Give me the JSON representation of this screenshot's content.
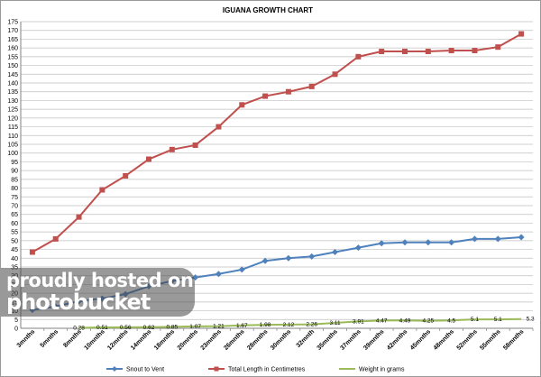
{
  "chart_data": {
    "type": "line",
    "title": "IGUANA  GROWTH  CHART",
    "categories": [
      "3mnths",
      "5mnths",
      "8mnths",
      "10mnths",
      "12mnths",
      "14mnths",
      "18mnths",
      "20mnths",
      "23mnths",
      "26mnths",
      "28mnths",
      "30mnths",
      "32mnth",
      "35mnths",
      "37mnths",
      "39mnths",
      "42mnths",
      "45mnths",
      "48mnths",
      "52mnths",
      "55mnths",
      "58mnths"
    ],
    "ylim": [
      0,
      175
    ],
    "yticks": [
      0,
      5,
      10,
      15,
      20,
      25,
      30,
      35,
      40,
      45,
      50,
      55,
      60,
      65,
      70,
      75,
      80,
      85,
      90,
      95,
      100,
      105,
      110,
      115,
      120,
      125,
      130,
      135,
      140,
      145,
      150,
      155,
      160,
      165,
      170,
      175
    ],
    "grid": true,
    "legend_position": "bottom",
    "series": [
      {
        "name": "Snout to Vent",
        "color": "#4f81bd",
        "marker": "diamond",
        "values": [
          10.5,
          12.5,
          15.5,
          17,
          19.5,
          24,
          27,
          29,
          31,
          33.5,
          38.5,
          40,
          41,
          43.5,
          46,
          48.5,
          49,
          49,
          49,
          51,
          51,
          52
        ]
      },
      {
        "name": "Total Length in Centimetres",
        "color": "#c0504d",
        "marker": "square",
        "values": [
          43.5,
          51,
          63.5,
          79,
          87,
          96.5,
          102,
          104.5,
          115,
          127.5,
          132.5,
          135,
          138,
          145,
          155,
          158,
          158,
          158,
          158.5,
          158.5,
          160.5,
          168
        ]
      },
      {
        "name": "Weight in grams",
        "color": "#9bbb59",
        "marker": "none",
        "values": [
          null,
          null,
          0.28,
          0.51,
          0.56,
          0.62,
          0.85,
          1.07,
          1.21,
          1.67,
          1.98,
          2.12,
          2.26,
          3.11,
          3.91,
          4.47,
          4.49,
          4.25,
          4.5,
          5.1,
          5.1,
          5.3
        ],
        "data_labels": [
          null,
          null,
          "0.28",
          "0.51",
          "0.56",
          "0.62",
          "0.85",
          "1.07",
          "1.21",
          "1.67",
          "1.98",
          "2.12",
          "2.26",
          "3.11",
          "3.91",
          "4.47",
          "4.49",
          "4.25",
          "4.5",
          "5.1",
          "5.1",
          "5.3"
        ]
      }
    ]
  },
  "watermark": {
    "line1": "proudly hosted on",
    "line2": "photobucket"
  }
}
